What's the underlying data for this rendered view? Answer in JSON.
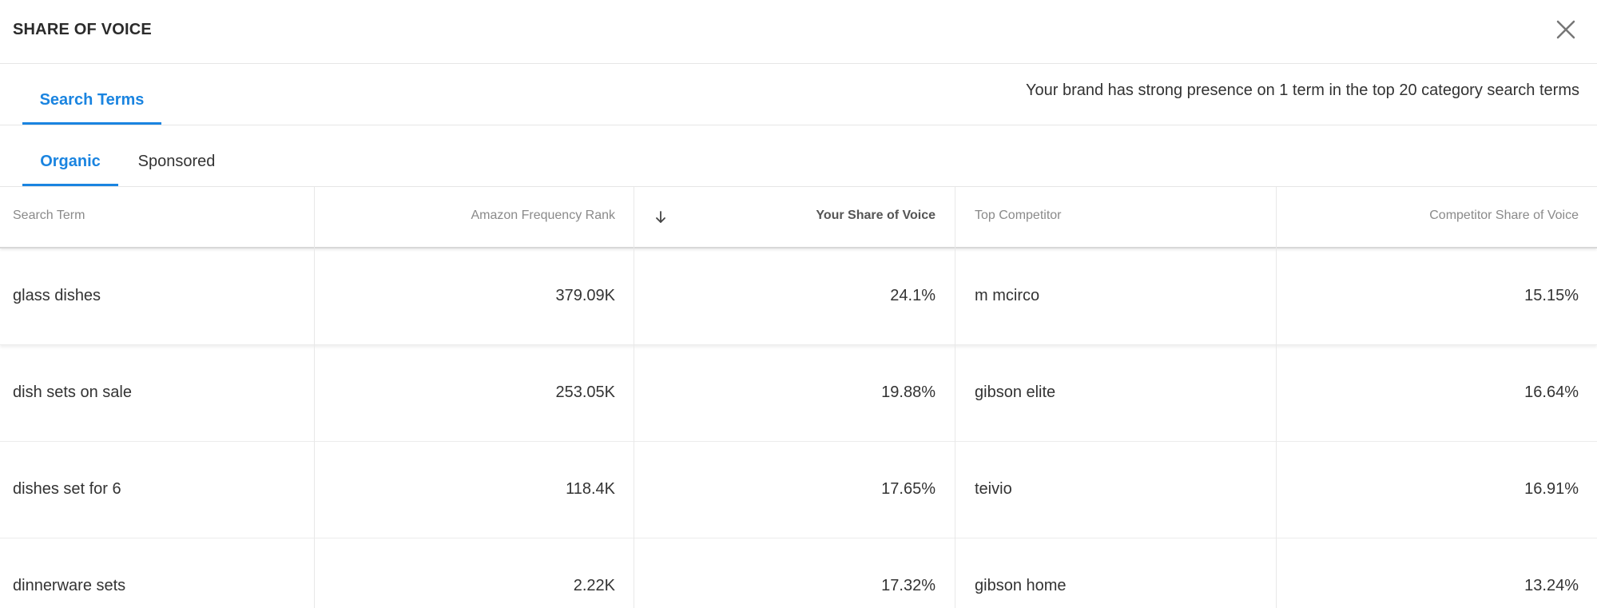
{
  "header": {
    "title": "SHARE OF VOICE",
    "close_icon": "close-icon"
  },
  "tabs": {
    "main_tab": "Search Terms",
    "summary": "Your brand has strong presence on 1 term in the top 20 category search terms"
  },
  "subtabs": {
    "organic": "Organic",
    "sponsored": "Sponsored"
  },
  "table": {
    "sort_icon": "arrow-down-icon",
    "columns": [
      "Search Term",
      "Amazon Frequency Rank",
      "Your Share of Voice",
      "Top Competitor",
      "Competitor Share of Voice"
    ],
    "rows": [
      [
        "glass dishes",
        "379.09K",
        "24.1%",
        "m mcirco",
        "15.15%"
      ],
      [
        "dish sets on sale",
        "253.05K",
        "19.88%",
        "gibson elite",
        "16.64%"
      ],
      [
        "dishes set for 6",
        "118.4K",
        "17.65%",
        "teivio",
        "16.91%"
      ],
      [
        "dinnerware sets",
        "2.22K",
        "17.32%",
        "gibson home",
        "13.24%"
      ]
    ]
  },
  "colors": {
    "accent": "#1a84e0",
    "border": "#e6e6e6"
  }
}
